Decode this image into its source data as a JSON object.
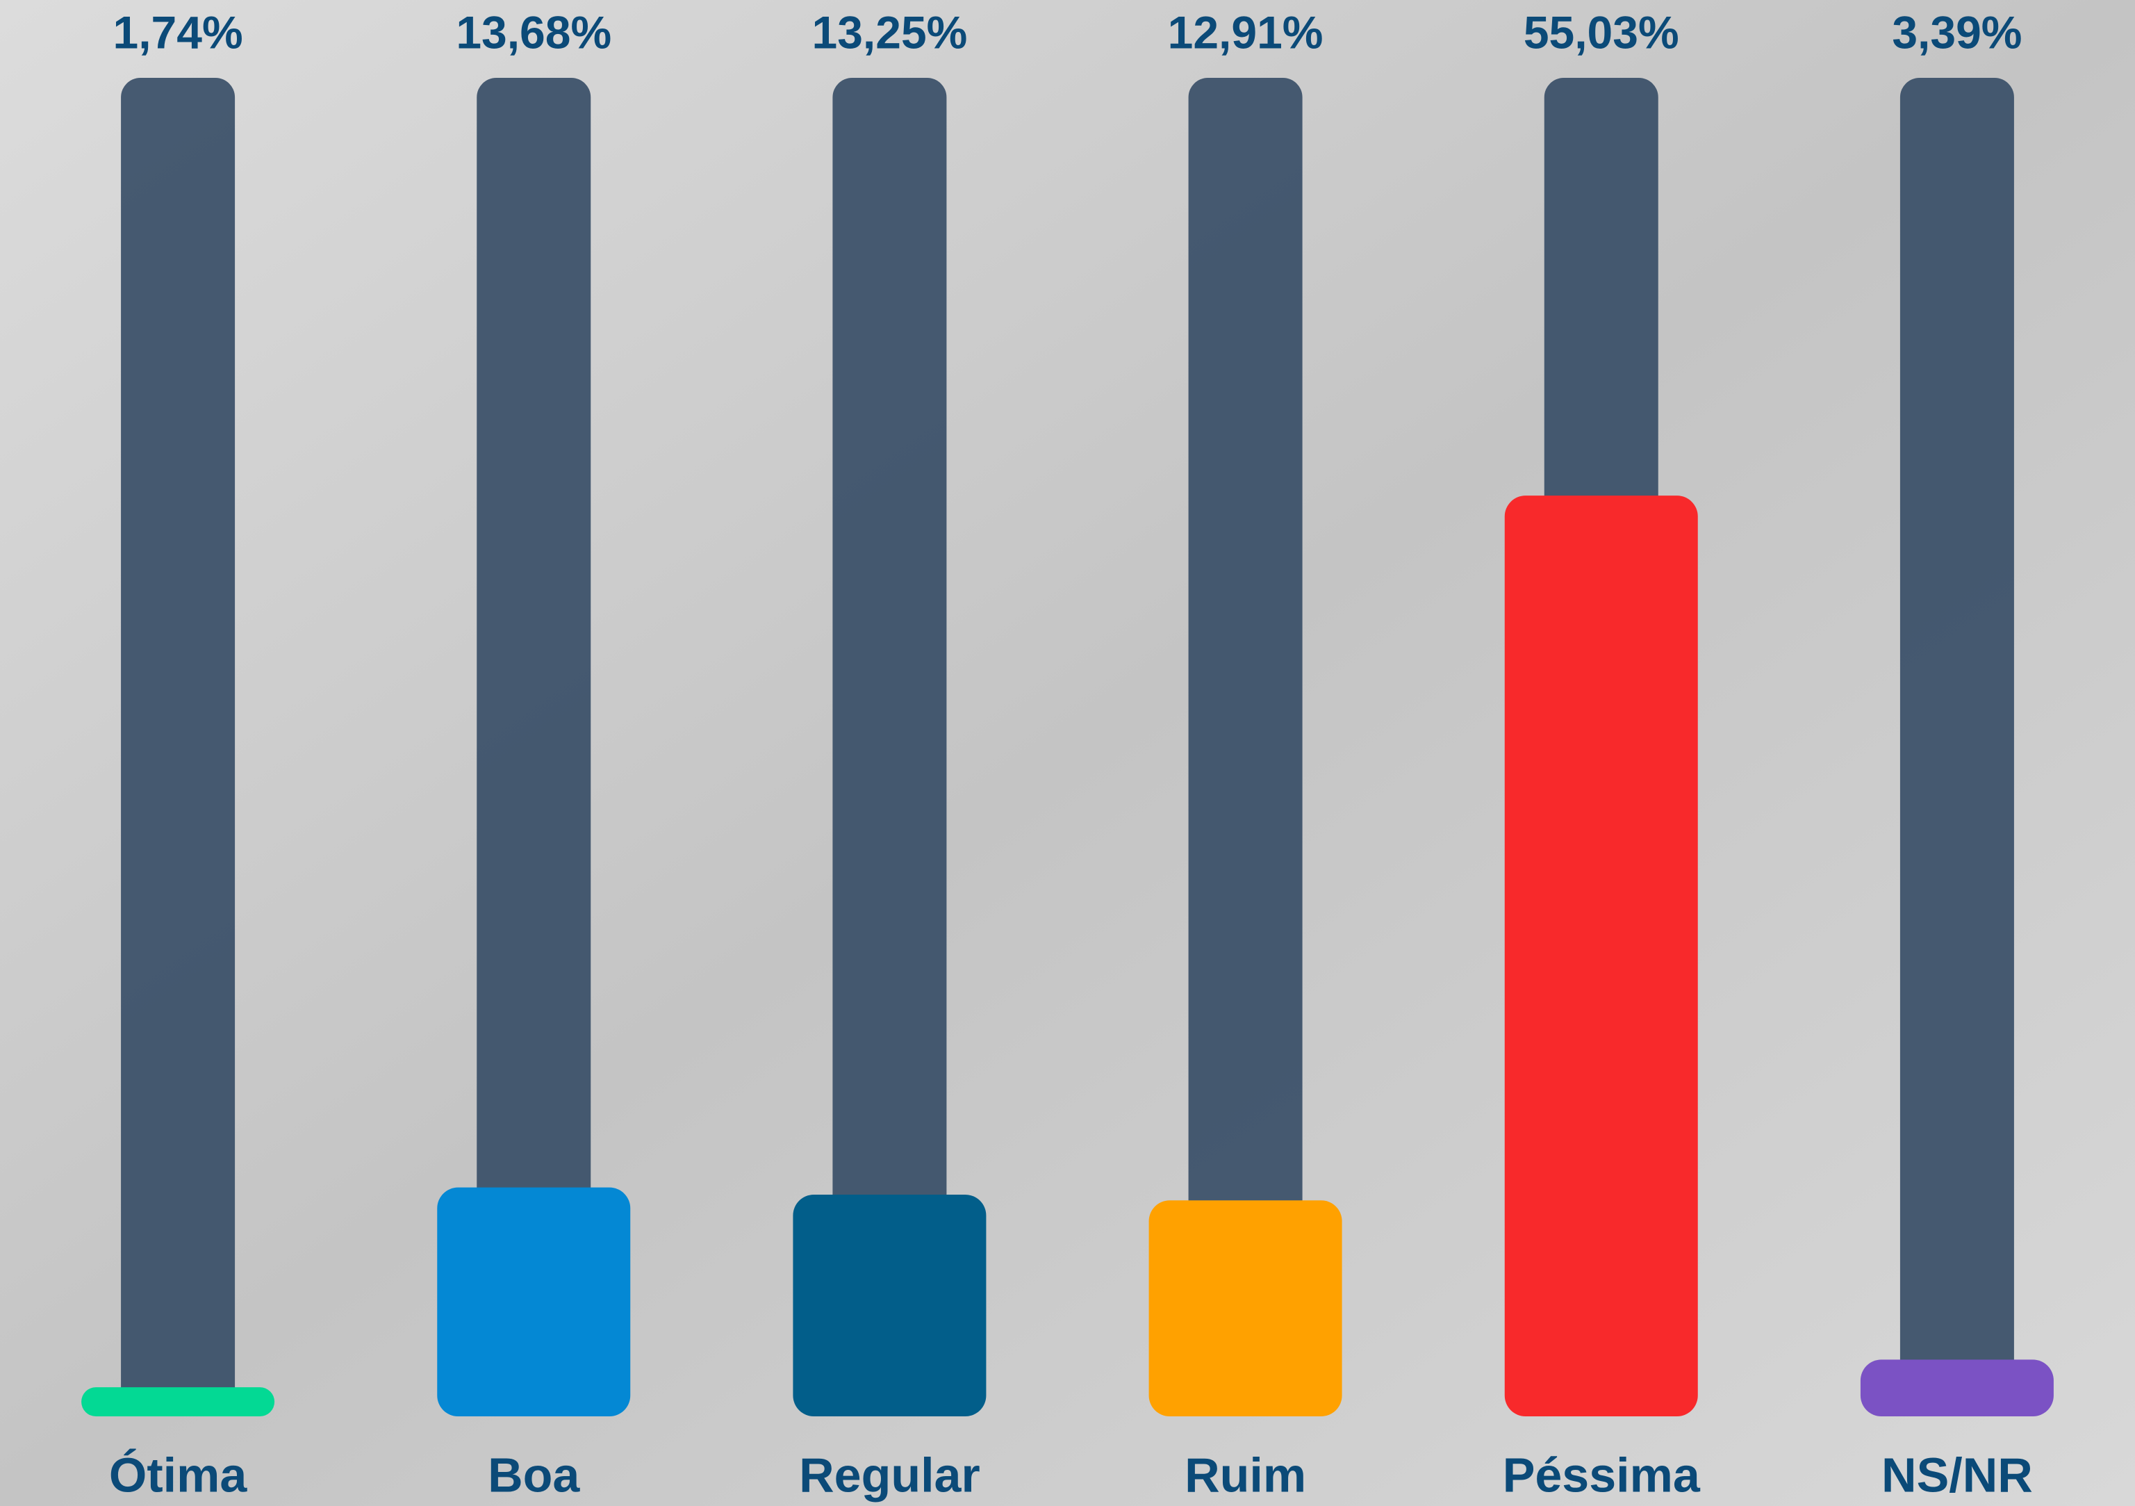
{
  "chart_data": {
    "type": "bar",
    "categories": [
      "Ótima",
      "Boa",
      "Regular",
      "Ruim",
      "Péssima",
      "NS/NR"
    ],
    "values": [
      1.74,
      13.68,
      13.25,
      12.91,
      55.03,
      3.39
    ],
    "value_labels": [
      "1,74%",
      "13,68%",
      "13,25%",
      "12,91%",
      "55,03%",
      "3,39%"
    ],
    "colors": [
      "#03d994",
      "#0488d4",
      "#025e8a",
      "#ffa100",
      "#f8292b",
      "#7b52c4"
    ],
    "ylim": [
      0,
      80
    ]
  }
}
